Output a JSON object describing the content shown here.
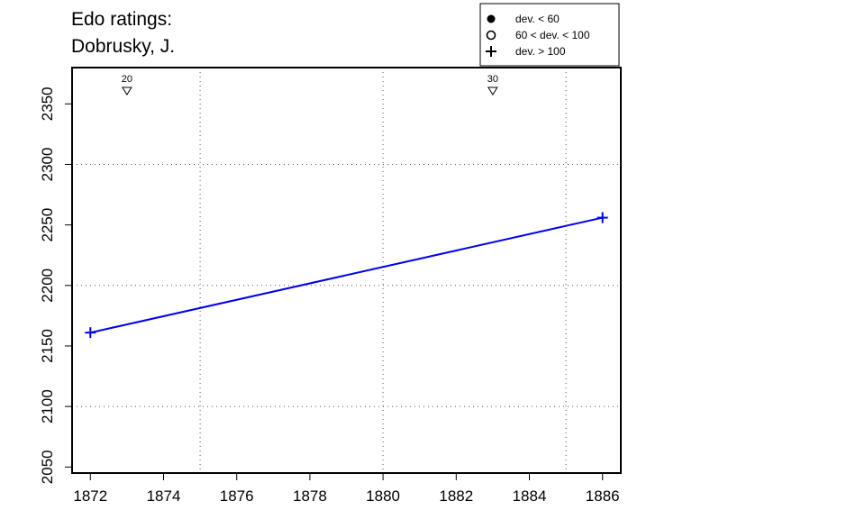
{
  "title_lines": [
    "Edo ratings:",
    "Dobrusky, J."
  ],
  "chart_data": {
    "type": "line",
    "title": "Edo ratings: Dobrusky, J.",
    "xlabel": "",
    "ylabel": "",
    "xlim": [
      1871.5,
      1886.5
    ],
    "ylim": [
      2045,
      2380
    ],
    "x_ticks": [
      1872,
      1874,
      1876,
      1878,
      1880,
      1882,
      1884,
      1886
    ],
    "y_ticks": [
      2050,
      2100,
      2150,
      2200,
      2250,
      2300,
      2350
    ],
    "x_grid": [
      1875,
      1880,
      1885
    ],
    "y_grid": [
      2100,
      2200,
      2300
    ],
    "grid": true,
    "series": [
      {
        "color": "#0000ee",
        "x": [
          1872,
          1886
        ],
        "y": [
          2161,
          2256
        ],
        "markers": [
          "plus",
          "plus"
        ]
      }
    ],
    "top_markers": [
      {
        "x": 1873,
        "label": "20"
      },
      {
        "x": 1883,
        "label": "30"
      }
    ],
    "legend": {
      "position": "top-right",
      "entries": [
        {
          "symbol": "filled-circle",
          "label": "dev. < 60"
        },
        {
          "symbol": "open-circle",
          "label": "60 < dev. < 100"
        },
        {
          "symbol": "plus",
          "label": "dev. > 100"
        }
      ]
    }
  }
}
